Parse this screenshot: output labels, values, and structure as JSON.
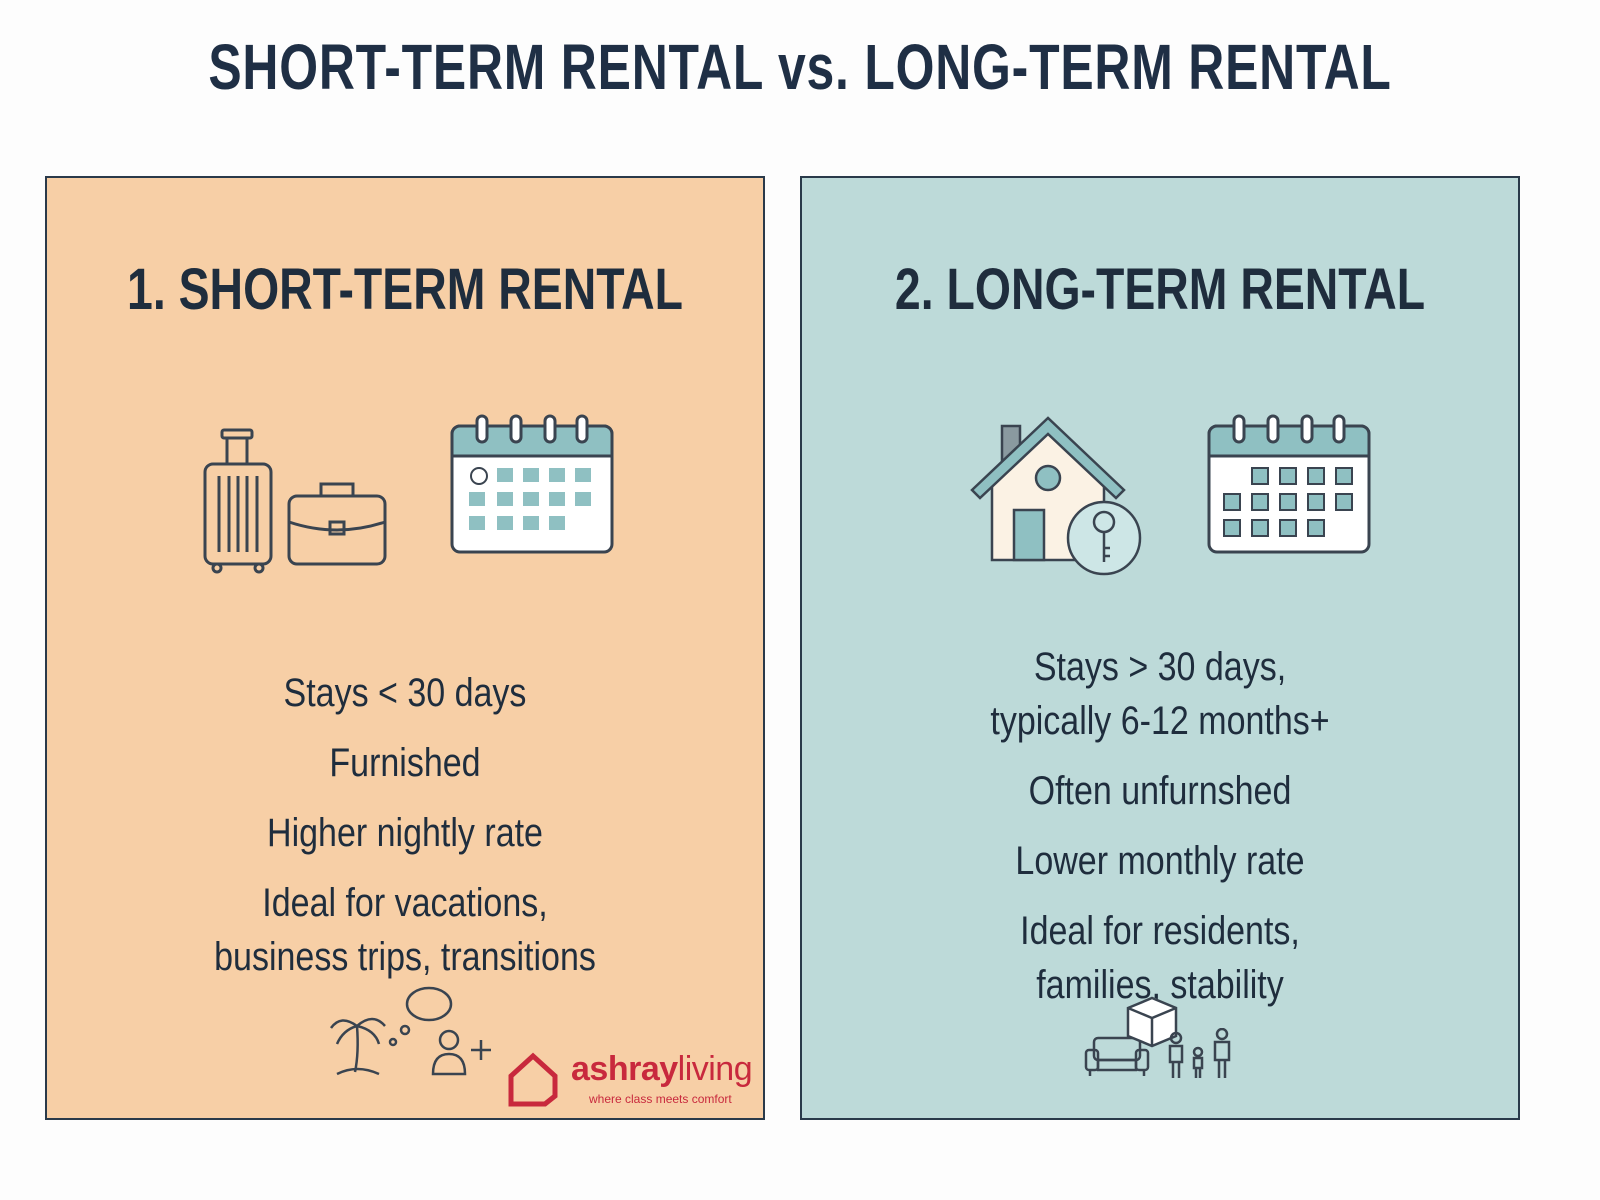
{
  "title": "SHORT-TERM RENTAL vs. LONG-TERM RENTAL",
  "colors": {
    "short_term_bg": "#f7cfa6",
    "long_term_bg": "#bddad9",
    "text": "#1f2d3d",
    "brand": "#c8293d",
    "icon_teal": "#8fc0c2"
  },
  "short_term": {
    "heading": "1. SHORT-TERM RENTAL",
    "icons": [
      "suitcase-icon",
      "briefcase-icon",
      "calendar-icon",
      "palm-tree-icon",
      "chat-bubble-icon",
      "person-add-icon"
    ],
    "points": [
      "Stays < 30 days",
      "Furnished",
      "Higher nightly rate",
      "Ideal for vacations,\nbusiness trips, transitions"
    ]
  },
  "long_term": {
    "heading": "2. LONG-TERM RENTAL",
    "icons": [
      "house-key-icon",
      "calendar-icon",
      "sofa-icon",
      "box-icon",
      "family-icon"
    ],
    "points": [
      "Stays > 30 days,\ntypically 6-12 months+",
      "Often unfurnshed",
      "Lower monthly rate",
      "Ideal for residents,\nfamilies, stability"
    ]
  },
  "logo": {
    "brand_bold": "ashray",
    "brand_light": "living",
    "tagline": "where class meets comfort"
  }
}
